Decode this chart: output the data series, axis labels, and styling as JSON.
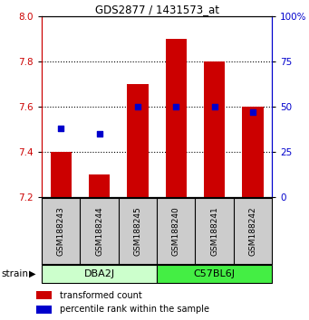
{
  "title": "GDS2877 / 1431573_at",
  "samples": [
    "GSM188243",
    "GSM188244",
    "GSM188245",
    "GSM188240",
    "GSM188241",
    "GSM188242"
  ],
  "group_labels": [
    "DBA2J",
    "C57BL6J"
  ],
  "group_color_dba": "#ccffcc",
  "group_color_c57": "#44ee44",
  "bar_bottom": 7.2,
  "bar_values": [
    7.4,
    7.3,
    7.7,
    7.9,
    7.8,
    7.6
  ],
  "percentile_values": [
    38,
    35,
    50,
    50,
    50,
    47
  ],
  "bar_color": "#cc0000",
  "dot_color": "#0000cc",
  "ylim_left": [
    7.2,
    8.0
  ],
  "ylim_right": [
    0,
    100
  ],
  "yticks_left": [
    7.2,
    7.4,
    7.6,
    7.8,
    8.0
  ],
  "yticks_right": [
    0,
    25,
    50,
    75,
    100
  ],
  "grid_values": [
    7.4,
    7.6,
    7.8
  ],
  "legend_items": [
    "transformed count",
    "percentile rank within the sample"
  ],
  "strain_label": "strain",
  "background_color": "#ffffff",
  "sample_area_color": "#cccccc"
}
